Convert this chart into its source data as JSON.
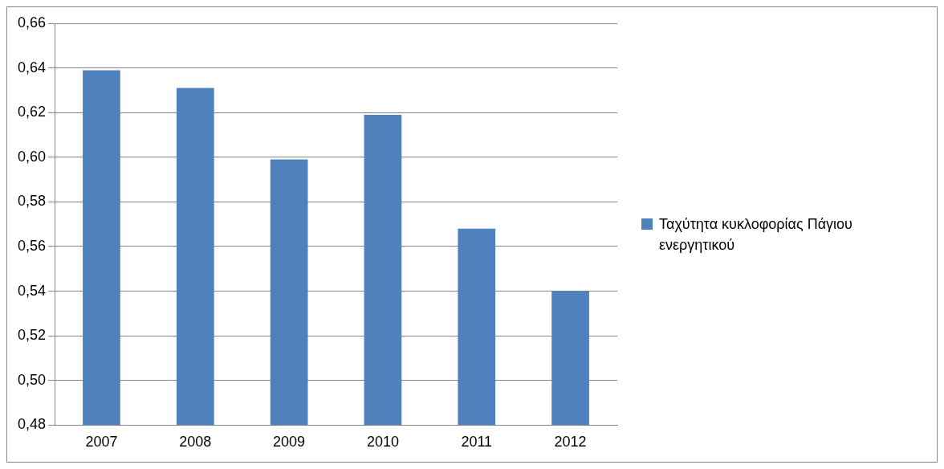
{
  "chart_data": {
    "type": "bar",
    "categories": [
      "2007",
      "2008",
      "2009",
      "2010",
      "2011",
      "2012"
    ],
    "series": [
      {
        "name": "Ταχύτητα κυκλοφορίας Πάγιου ενεργητικού",
        "color": "#4f81bd",
        "values": [
          0.639,
          0.631,
          0.599,
          0.619,
          0.568,
          0.54
        ]
      }
    ],
    "ylim": [
      0.48,
      0.66
    ],
    "yticks": [
      {
        "value": 0.48,
        "label": "0,48"
      },
      {
        "value": 0.5,
        "label": "0,50"
      },
      {
        "value": 0.52,
        "label": "0,52"
      },
      {
        "value": 0.54,
        "label": "0,54"
      },
      {
        "value": 0.56,
        "label": "0,56"
      },
      {
        "value": 0.58,
        "label": "0,58"
      },
      {
        "value": 0.6,
        "label": "0,60"
      },
      {
        "value": 0.62,
        "label": "0,62"
      },
      {
        "value": 0.64,
        "label": "0,64"
      },
      {
        "value": 0.66,
        "label": "0,66"
      }
    ],
    "grid": "y",
    "legend": "right"
  }
}
